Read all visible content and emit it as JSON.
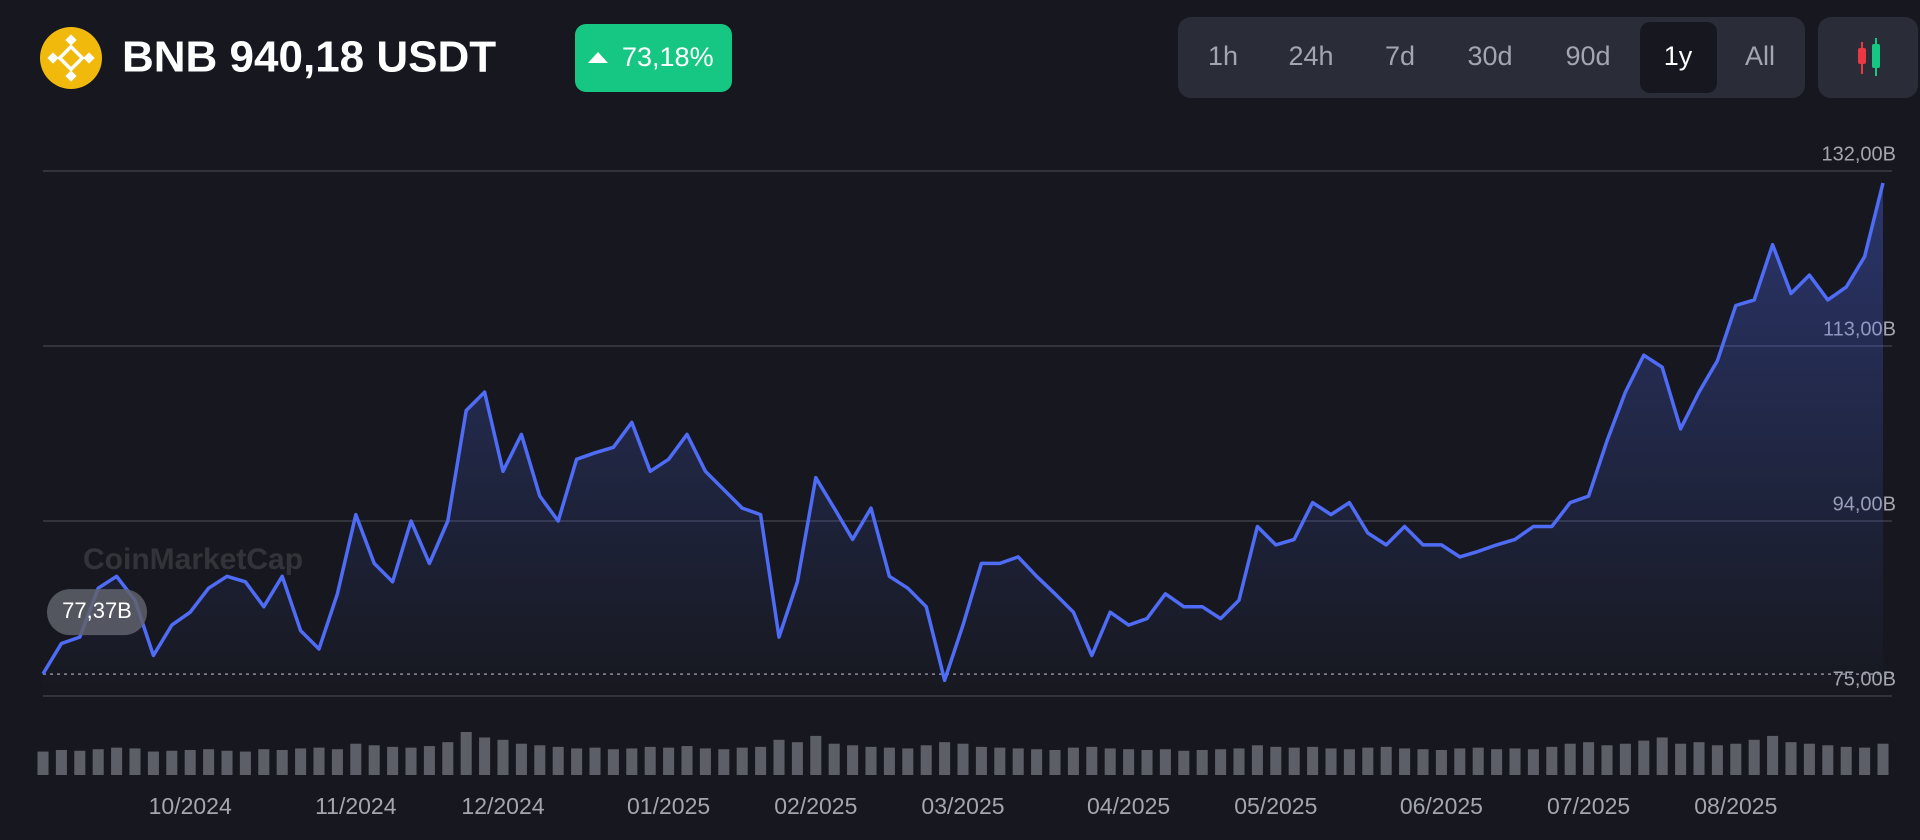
{
  "header": {
    "title": "BNB 940,18 USDT",
    "change": "73,18%"
  },
  "timeframes": [
    "1h",
    "24h",
    "7d",
    "30d",
    "90d",
    "1y",
    "All"
  ],
  "watermark": "CoinMarketCap",
  "chart_data": {
    "type": "line",
    "categories": [
      null,
      null,
      null,
      null,
      null,
      null,
      null,
      null,
      "10/2024",
      null,
      null,
      null,
      null,
      null,
      null,
      null,
      null,
      "11/2024",
      null,
      null,
      null,
      null,
      null,
      null,
      null,
      "12/2024",
      null,
      null,
      null,
      null,
      null,
      null,
      null,
      null,
      "01/2025",
      null,
      null,
      null,
      null,
      null,
      null,
      null,
      "02/2025",
      null,
      null,
      null,
      null,
      null,
      null,
      null,
      "03/2025",
      null,
      null,
      null,
      null,
      null,
      null,
      null,
      null,
      "04/2025",
      null,
      null,
      null,
      null,
      null,
      null,
      null,
      "05/2025",
      null,
      null,
      null,
      null,
      null,
      null,
      null,
      null,
      "06/2025",
      null,
      null,
      null,
      null,
      null,
      null,
      null,
      "07/2025",
      null,
      null,
      null,
      null,
      null,
      null,
      null,
      "08/2025",
      null,
      null,
      null,
      null,
      null,
      null,
      null,
      null
    ],
    "series": [
      {
        "color": "#4f6cf7",
        "values": [
          77.4,
          80.7,
          81.4,
          86.7,
          88.0,
          85.4,
          79.4,
          82.7,
          84.1,
          86.7,
          88.0,
          87.4,
          84.7,
          88.0,
          82.1,
          80.1,
          86.1,
          94.7,
          89.4,
          87.4,
          94.0,
          89.4,
          94.0,
          106.0,
          108.0,
          99.4,
          103.4,
          96.7,
          94.0,
          100.7,
          101.4,
          102.0,
          104.7,
          99.4,
          100.7,
          103.4,
          99.4,
          97.4,
          95.4,
          94.7,
          81.4,
          87.4,
          98.7,
          95.4,
          92.0,
          95.4,
          88.0,
          86.7,
          84.7,
          76.7,
          82.7,
          89.4,
          89.4,
          90.1,
          88.0,
          86.1,
          84.1,
          79.4,
          84.1,
          82.7,
          83.4,
          86.1,
          84.7,
          84.7,
          83.4,
          85.4,
          93.4,
          91.4,
          92.0,
          96.0,
          94.7,
          96.0,
          92.7,
          91.4,
          93.4,
          91.4,
          91.4,
          90.1,
          90.7,
          91.4,
          92.0,
          93.4,
          93.4,
          96.0,
          96.7,
          102.7,
          108.0,
          112.0,
          110.7,
          104.0,
          108.0,
          111.4,
          117.4,
          118.0,
          124.0,
          118.7,
          120.7,
          118.0,
          119.4,
          122.7,
          130.7
        ]
      }
    ],
    "volume": {
      "color": "#5c5f68",
      "values": [
        30,
        32,
        31,
        33,
        35,
        34,
        30,
        31,
        32,
        33,
        31,
        30,
        33,
        32,
        34,
        35,
        33,
        40,
        38,
        36,
        35,
        37,
        42,
        55,
        48,
        45,
        40,
        38,
        36,
        34,
        35,
        33,
        34,
        36,
        35,
        37,
        34,
        33,
        35,
        36,
        45,
        42,
        50,
        40,
        38,
        36,
        35,
        34,
        38,
        42,
        40,
        36,
        35,
        34,
        33,
        32,
        35,
        36,
        34,
        33,
        32,
        33,
        31,
        32,
        33,
        34,
        38,
        36,
        35,
        36,
        34,
        33,
        35,
        36,
        34,
        33,
        32,
        34,
        35,
        33,
        34,
        33,
        36,
        40,
        42,
        38,
        40,
        44,
        48,
        40,
        42,
        38,
        40,
        45,
        50,
        42,
        40,
        38,
        36,
        35,
        40
      ]
    },
    "ylim": [
      75,
      132
    ],
    "yticks": [
      {
        "value": 75,
        "label": "75,00B"
      },
      {
        "value": 94,
        "label": "94,00B"
      },
      {
        "value": 113,
        "label": "113,00B"
      },
      {
        "value": 132,
        "label": "132,00B"
      }
    ],
    "grid": true,
    "annotations": [
      {
        "value": 77.37,
        "label": "77,37B"
      }
    ]
  }
}
